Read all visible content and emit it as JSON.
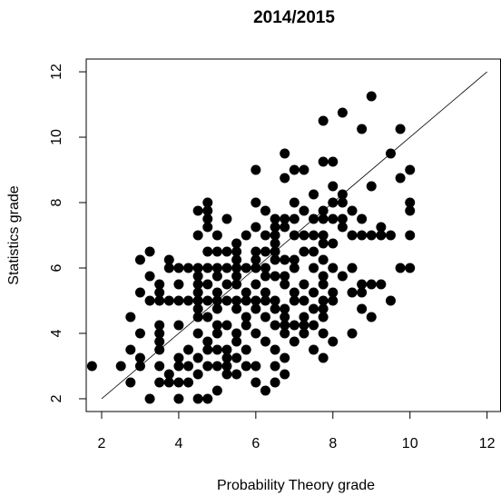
{
  "chart_data": {
    "type": "scatter",
    "title": "2014/2015",
    "x_label": "Probability Theory grade",
    "y_label": "Statistics grade",
    "color": "#000000",
    "xlim": [
      1.6,
      12.35
    ],
    "ylim": [
      1.61,
      12.39
    ],
    "xticks": [
      2,
      4,
      6,
      8,
      10,
      12
    ],
    "yticks": [
      2,
      4,
      6,
      8,
      10,
      12
    ],
    "reference_line": {
      "x": [
        2,
        12
      ],
      "y": [
        2,
        12
      ]
    },
    "x": [
      9,
      8.25,
      7.75,
      8.75,
      9.75,
      6.75,
      9.5,
      7.75,
      8,
      6,
      7,
      7.25,
      10,
      6.75,
      9.75,
      8,
      9,
      7.5,
      8.25,
      4.75,
      6,
      7,
      8,
      8.25,
      10,
      4.5,
      4.75,
      6.25,
      7.25,
      7.75,
      8.5,
      10,
      4.75,
      5.25,
      6.5,
      6.75,
      7,
      7.5,
      7.75,
      8,
      8.25,
      8.75,
      4.75,
      6,
      6.5,
      6.75,
      8.25,
      9.25,
      4.5,
      5,
      5.75,
      6.25,
      6.5,
      7,
      7.25,
      7.5,
      7.75,
      8.5,
      8.75,
      9,
      9.25,
      9.5,
      10,
      5.5,
      6.5,
      7.75,
      8,
      3.25,
      4.75,
      5,
      5.25,
      5.5,
      6,
      6.25,
      6.5,
      7.25,
      7.5,
      3,
      3.75,
      5.5,
      6,
      6.5,
      6.75,
      7,
      7.75,
      3.75,
      4,
      4.25,
      4.5,
      4.75,
      5,
      5.25,
      5.5,
      5.75,
      6,
      6.25,
      7,
      7.5,
      8,
      8.5,
      9.75,
      10,
      3.25,
      4.5,
      5,
      5.5,
      6.25,
      6.5,
      6.75,
      7.75,
      8.25,
      3.5,
      4,
      4.5,
      4.75,
      5.25,
      5.5,
      6,
      6.75,
      7.25,
      7.75,
      8.75,
      9,
      9.25,
      3,
      3.5,
      4.5,
      5,
      5.75,
      6.25,
      7,
      7.5,
      8,
      8.5,
      8.75,
      3.25,
      3.5,
      3.75,
      4,
      4.25,
      4.5,
      4.75,
      5,
      5.25,
      5.5,
      5.75,
      6,
      6.25,
      6.5,
      7,
      7.25,
      7.75,
      8,
      9.5,
      4.5,
      5,
      5.5,
      6,
      6.5,
      6.75,
      7.5,
      7.75,
      8.75,
      2.75,
      4.5,
      4.75,
      5.75,
      6.25,
      6.75,
      7.25,
      7.75,
      9,
      3.5,
      4,
      5,
      5.25,
      5.75,
      6.5,
      6.75,
      7,
      7.25,
      7.5,
      3,
      3.5,
      4.5,
      5,
      5.5,
      6,
      6.75,
      7.25,
      7.75,
      8.5,
      3.5,
      4.75,
      5.5,
      6.25,
      7,
      8,
      2.75,
      3.5,
      4.25,
      4.75,
      5,
      5.25,
      5.75,
      6.5,
      7.5,
      3,
      4,
      4.5,
      5.25,
      5.5,
      6.75,
      7.75,
      1.75,
      2.5,
      3,
      3.5,
      4,
      4.25,
      4.75,
      5,
      5.25,
      5.75,
      6,
      6.5,
      3.75,
      4.5,
      5.25,
      5.5,
      6.75,
      2.75,
      3.5,
      3.75,
      4,
      4.25,
      6,
      6.5,
      5,
      6.25,
      3.25,
      4,
      4.5,
      4.75
    ],
    "values": [
      11.25,
      10.75,
      10.5,
      10.25,
      10.25,
      9.5,
      9.5,
      9.25,
      9.25,
      9,
      9,
      9,
      9,
      8.75,
      8.75,
      8.5,
      8.5,
      8.25,
      8.25,
      8,
      8,
      8,
      8,
      8,
      8,
      7.75,
      7.75,
      7.75,
      7.75,
      7.75,
      7.75,
      7.75,
      7.5,
      7.5,
      7.5,
      7.5,
      7.5,
      7.5,
      7.5,
      7.5,
      7.5,
      7.5,
      7.25,
      7.25,
      7.25,
      7.25,
      7.25,
      7.25,
      7,
      7,
      7,
      7,
      7,
      7,
      7,
      7,
      7,
      7,
      7,
      7,
      7,
      7,
      7,
      6.75,
      6.75,
      6.75,
      6.75,
      6.5,
      6.5,
      6.5,
      6.5,
      6.5,
      6.5,
      6.5,
      6.5,
      6.5,
      6.5,
      6.25,
      6.25,
      6.25,
      6.25,
      6.25,
      6.25,
      6.25,
      6.25,
      6,
      6,
      6,
      6,
      6,
      6,
      6,
      6,
      6,
      6,
      6,
      6,
      6,
      6,
      6,
      6,
      6,
      5.75,
      5.75,
      5.75,
      5.75,
      5.75,
      5.75,
      5.75,
      5.75,
      5.75,
      5.5,
      5.5,
      5.5,
      5.5,
      5.5,
      5.5,
      5.5,
      5.5,
      5.5,
      5.5,
      5.5,
      5.5,
      5.5,
      5.25,
      5.25,
      5.25,
      5.25,
      5.25,
      5.25,
      5.25,
      5.25,
      5.25,
      5.25,
      5.25,
      5,
      5,
      5,
      5,
      5,
      5,
      5,
      5,
      5,
      5,
      5,
      5,
      5,
      5,
      5,
      5,
      5,
      5,
      5,
      4.75,
      4.75,
      4.75,
      4.75,
      4.75,
      4.75,
      4.75,
      4.75,
      4.75,
      4.5,
      4.5,
      4.5,
      4.5,
      4.5,
      4.5,
      4.5,
      4.5,
      4.5,
      4.25,
      4.25,
      4.25,
      4.25,
      4.25,
      4.25,
      4.25,
      4.25,
      4.25,
      4.25,
      4,
      4,
      4,
      4,
      4,
      4,
      4,
      4,
      4,
      4,
      3.75,
      3.75,
      3.75,
      3.75,
      3.75,
      3.75,
      3.5,
      3.5,
      3.5,
      3.5,
      3.5,
      3.5,
      3.5,
      3.5,
      3.5,
      3.25,
      3.25,
      3.25,
      3.25,
      3.25,
      3.25,
      3.25,
      3,
      3,
      3,
      3,
      3,
      3,
      3,
      3,
      3,
      3,
      3,
      3,
      2.75,
      2.75,
      2.75,
      2.75,
      2.75,
      2.5,
      2.5,
      2.5,
      2.5,
      2.5,
      2.5,
      2.5,
      2.25,
      2.25,
      2,
      2,
      2,
      2
    ]
  }
}
